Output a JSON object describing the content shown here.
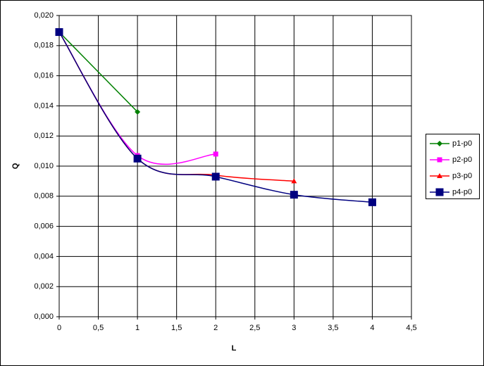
{
  "chart_data": {
    "type": "line",
    "x_label": "L",
    "y_label": "Q",
    "xlim": [
      0,
      4.5
    ],
    "xticks": [
      0,
      {
        "value": 0.5,
        "label": "0,5"
      },
      1,
      {
        "value": 1.5,
        "label": "1,5"
      },
      2,
      {
        "value": 2.5,
        "label": "2,5"
      },
      3,
      {
        "value": 3.5,
        "label": "3,5"
      },
      4,
      {
        "value": 4.5,
        "label": "4,5"
      }
    ],
    "ylim": [
      0,
      0.02
    ],
    "yticks": [
      {
        "value": 0,
        "label": "0,000"
      },
      {
        "value": 0.002,
        "label": "0,002"
      },
      {
        "value": 0.004,
        "label": "0,004"
      },
      {
        "value": 0.006,
        "label": "0,006"
      },
      {
        "value": 0.008,
        "label": "0,008"
      },
      {
        "value": 0.01,
        "label": "0,010"
      },
      {
        "value": 0.012,
        "label": "0,012"
      },
      {
        "value": 0.014,
        "label": "0,014"
      },
      {
        "value": 0.016,
        "label": "0,016"
      },
      {
        "value": 0.018,
        "label": "0,018"
      },
      {
        "value": 0.02,
        "label": "0,020"
      }
    ],
    "grid": true,
    "smooth": true,
    "legend": "right",
    "series": [
      {
        "name": "p1-p0",
        "color": "#008000",
        "marker": "diamond",
        "x": [
          0,
          1
        ],
        "values": [
          0.0189,
          0.0136
        ]
      },
      {
        "name": "p2-p0",
        "color": "#ff00ff",
        "marker": "square",
        "x": [
          0,
          1,
          2
        ],
        "values": [
          0.0189,
          0.0107,
          0.0108
        ]
      },
      {
        "name": "p3-p0",
        "color": "#ff0000",
        "marker": "triangle",
        "x": [
          0,
          1,
          2,
          3
        ],
        "values": [
          0.0189,
          0.0105,
          0.0094,
          0.009
        ]
      },
      {
        "name": "p4-p0",
        "color": "#000080",
        "marker": "big-square",
        "x": [
          0,
          1,
          2,
          3,
          4
        ],
        "values": [
          0.0189,
          0.0105,
          0.0093,
          0.0081,
          0.0076
        ]
      }
    ]
  }
}
